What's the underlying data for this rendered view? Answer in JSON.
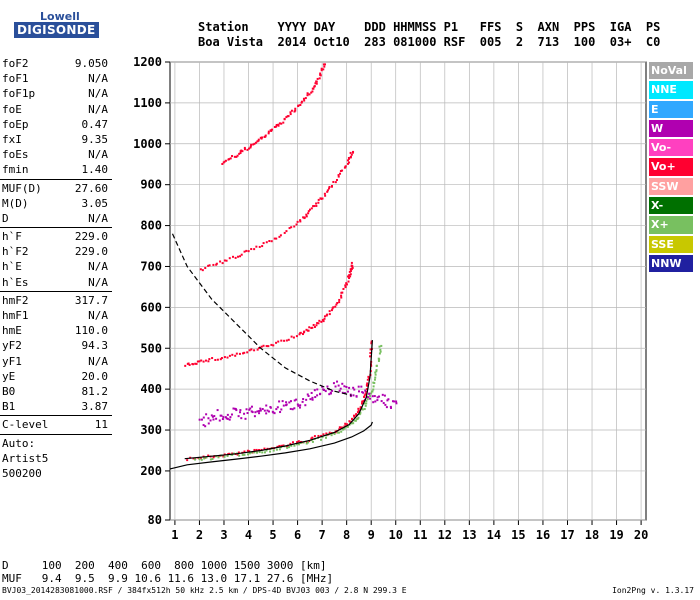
{
  "logo": {
    "line1": "Lowell",
    "line2": "DIGISONDE"
  },
  "header": {
    "line1": "Station    YYYY DAY    DDD HHMMSS P1   FFS  S  AXN  PPS  IGA  PS",
    "line2": "Boa Vista  2014 Oct10  283 081000 RSF  005  2  713  100  03+  C0"
  },
  "params": [
    {
      "label": "foF2",
      "value": "9.050"
    },
    {
      "label": "foF1",
      "value": "N/A"
    },
    {
      "label": "foF1p",
      "value": "N/A"
    },
    {
      "label": "foE",
      "value": "N/A"
    },
    {
      "label": "foEp",
      "value": "0.47"
    },
    {
      "label": "fxI",
      "value": "9.35"
    },
    {
      "label": "foEs",
      "value": "N/A"
    },
    {
      "label": "fmin",
      "value": "1.40"
    },
    {
      "label": "MUF(D)",
      "value": "27.60"
    },
    {
      "label": "M(D)",
      "value": "3.05"
    },
    {
      "label": "D",
      "value": "N/A"
    },
    {
      "label": "h`F",
      "value": "229.0"
    },
    {
      "label": "h`F2",
      "value": "229.0"
    },
    {
      "label": "h`E",
      "value": "N/A"
    },
    {
      "label": "h`Es",
      "value": "N/A"
    },
    {
      "label": "hmF2",
      "value": "317.7"
    },
    {
      "label": "hmF1",
      "value": "N/A"
    },
    {
      "label": "hmE",
      "value": "110.0"
    },
    {
      "label": "yF2",
      "value": "94.3"
    },
    {
      "label": "yF1",
      "value": "N/A"
    },
    {
      "label": "yE",
      "value": "20.0"
    },
    {
      "label": "B0",
      "value": "81.2"
    },
    {
      "label": "B1",
      "value": "3.87"
    },
    {
      "label": "C-level",
      "value": "11"
    }
  ],
  "auto": {
    "label": "Auto:",
    "artist": "Artist5",
    "code": "500200"
  },
  "legend": [
    {
      "label": "NoVal",
      "color": "#a8a8a8"
    },
    {
      "label": "NNE",
      "color": "#00e8ff"
    },
    {
      "label": "E",
      "color": "#30a8ff"
    },
    {
      "label": "W",
      "color": "#b000b0"
    },
    {
      "label": "Vo-",
      "color": "#ff40c0"
    },
    {
      "label": "Vo+",
      "color": "#ff0030"
    },
    {
      "label": "SSW",
      "color": "#ffa0a0"
    },
    {
      "label": "X-",
      "color": "#007000"
    },
    {
      "label": "X+",
      "color": "#78c060"
    },
    {
      "label": "SSE",
      "color": "#c8c800"
    },
    {
      "label": "NNW",
      "color": "#2020a0"
    }
  ],
  "dtable": {
    "row1": "D     100  200  400  600  800 1000 1500 3000 [km]",
    "row2": "MUF   9.4  9.5  9.9 10.6 11.6 13.0 17.1 27.6 [MHz]"
  },
  "footer": {
    "left": "BVJ03_2014283081000.RSF / 384fx512h 50 kHz 2.5 km / DPS-4D BVJ03 003 / 2.8 N 299.3 E",
    "right": "Ion2Png v. 1.3.17"
  },
  "chart_data": {
    "type": "scatter",
    "xlim": [
      0.8,
      20.2
    ],
    "ylim": [
      80,
      1200
    ],
    "x_ticks": [
      1,
      2,
      3,
      4,
      5,
      6,
      7,
      8,
      9,
      10,
      11,
      12,
      13,
      14,
      15,
      16,
      17,
      18,
      19,
      20
    ],
    "y_ticks": [
      80,
      200,
      300,
      400,
      500,
      600,
      700,
      800,
      900,
      1000,
      1100,
      1200
    ],
    "grid": true,
    "legend_position": "right",
    "series": [
      {
        "name": "Vo+",
        "color": "#ff0030",
        "trace": "F2 O-trace (1st hop)",
        "points": [
          [
            1.5,
            232
          ],
          [
            2.5,
            238
          ],
          [
            3.5,
            245
          ],
          [
            4.5,
            254
          ],
          [
            5.5,
            265
          ],
          [
            6.5,
            280
          ],
          [
            7.5,
            300
          ],
          [
            8.0,
            318
          ],
          [
            8.4,
            345
          ],
          [
            8.7,
            385
          ],
          [
            8.9,
            440
          ],
          [
            9.0,
            520
          ]
        ]
      },
      {
        "name": "X+",
        "color": "#78c060",
        "trace": "F2 X-trace (1st hop)",
        "points": [
          [
            1.8,
            230
          ],
          [
            3,
            238
          ],
          [
            4,
            246
          ],
          [
            5,
            255
          ],
          [
            6,
            267
          ],
          [
            7,
            283
          ],
          [
            7.8,
            302
          ],
          [
            8.3,
            325
          ],
          [
            8.7,
            360
          ],
          [
            9.0,
            400
          ],
          [
            9.2,
            450
          ],
          [
            9.35,
            510
          ]
        ]
      },
      {
        "name": "Vo+",
        "color": "#ff0030",
        "trace": "2nd hop",
        "points": [
          [
            1.4,
            462
          ],
          [
            2,
            470
          ],
          [
            3,
            480
          ],
          [
            4,
            495
          ],
          [
            5,
            512
          ],
          [
            6,
            535
          ],
          [
            6.5,
            552
          ],
          [
            7,
            572
          ],
          [
            7.5,
            605
          ],
          [
            7.9,
            650
          ],
          [
            8.1,
            685
          ],
          [
            8.2,
            710
          ]
        ]
      },
      {
        "name": "Vo+",
        "color": "#ff0030",
        "trace": "3rd hop",
        "points": [
          [
            2,
            695
          ],
          [
            3,
            715
          ],
          [
            4,
            740
          ],
          [
            5,
            770
          ],
          [
            6,
            810
          ],
          [
            6.5,
            840
          ],
          [
            7,
            872
          ],
          [
            7.5,
            910
          ],
          [
            8,
            955
          ],
          [
            8.2,
            985
          ]
        ]
      },
      {
        "name": "Vo+",
        "color": "#ff0030",
        "trace": "4th hop",
        "points": [
          [
            2.9,
            955
          ],
          [
            3.5,
            975
          ],
          [
            4,
            995
          ],
          [
            4.5,
            1015
          ],
          [
            5,
            1040
          ],
          [
            5.5,
            1065
          ],
          [
            6,
            1095
          ],
          [
            6.5,
            1130
          ],
          [
            6.8,
            1160
          ],
          [
            7.1,
            1200
          ]
        ]
      },
      {
        "name": "W",
        "color": "#b000b0",
        "trace": "spread / oblique echoes",
        "points": [
          [
            2,
            320
          ],
          [
            2.5,
            335
          ],
          [
            3,
            340
          ],
          [
            3.5,
            342
          ],
          [
            4,
            345
          ],
          [
            4.5,
            350
          ],
          [
            5,
            355
          ],
          [
            5.5,
            362
          ],
          [
            6,
            370
          ],
          [
            6.5,
            385
          ],
          [
            7,
            395
          ],
          [
            7.5,
            410
          ],
          [
            8,
            400
          ],
          [
            8.5,
            395
          ],
          [
            9,
            385
          ],
          [
            9.5,
            372
          ],
          [
            10,
            365
          ]
        ]
      }
    ],
    "profile_solid": {
      "color": "#000000",
      "points": [
        [
          0.8,
          205
        ],
        [
          1.5,
          215
        ],
        [
          2.5,
          222
        ],
        [
          3.5,
          229
        ],
        [
          4.5,
          236
        ],
        [
          5.5,
          244
        ],
        [
          6.5,
          254
        ],
        [
          7.5,
          268
        ],
        [
          8.2,
          283
        ],
        [
          8.7,
          298
        ],
        [
          9.0,
          312
        ],
        [
          9.05,
          320
        ]
      ]
    },
    "profile_dashed": {
      "color": "#000000",
      "points": [
        [
          0.9,
          780
        ],
        [
          1.5,
          700
        ],
        [
          2.5,
          620
        ],
        [
          3.5,
          560
        ],
        [
          4.5,
          500
        ],
        [
          5.5,
          452
        ],
        [
          6.5,
          420
        ],
        [
          7.5,
          395
        ],
        [
          8.2,
          385
        ]
      ]
    },
    "model_trace": {
      "color": "#000000",
      "points": [
        [
          1.4,
          230
        ],
        [
          2.5,
          236
        ],
        [
          3.5,
          242
        ],
        [
          4.5,
          250
        ],
        [
          5.5,
          261
        ],
        [
          6.5,
          275
        ],
        [
          7.5,
          294
        ],
        [
          8.1,
          313
        ],
        [
          8.5,
          340
        ],
        [
          8.8,
          380
        ],
        [
          8.95,
          430
        ],
        [
          9.05,
          520
        ]
      ]
    }
  }
}
